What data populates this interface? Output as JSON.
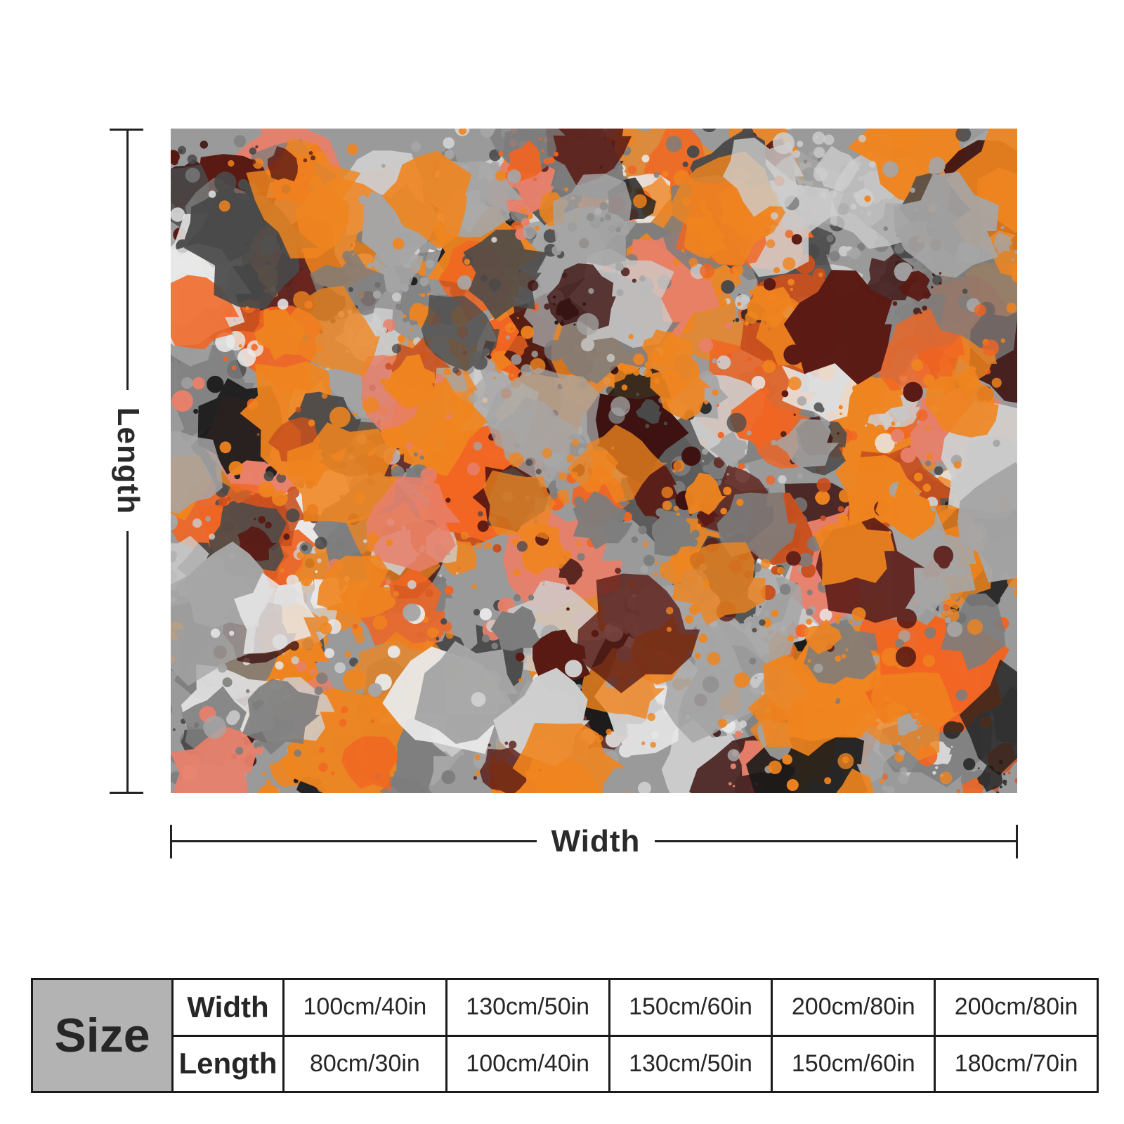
{
  "diagram": {
    "length_label": "Length",
    "width_label": "Width"
  },
  "size_table": {
    "header": "Size",
    "rows": [
      {
        "label": "Width",
        "values": [
          "100cm/40in",
          "130cm/50in",
          "150cm/60in",
          "200cm/80in",
          "200cm/80in"
        ]
      },
      {
        "label": "Length",
        "values": [
          "80cm/30in",
          "100cm/40in",
          "130cm/50in",
          "150cm/60in",
          "180cm/70in"
        ]
      }
    ]
  },
  "artwork": {
    "palette": [
      "#f0851f",
      "#f26522",
      "#1a1a1a",
      "#4a4a4a",
      "#7d7d7d",
      "#a6a6a6",
      "#cfcfcf",
      "#eaeaea",
      "#5a1a14",
      "#3d1210",
      "#e8806b",
      "#c9501e"
    ]
  }
}
